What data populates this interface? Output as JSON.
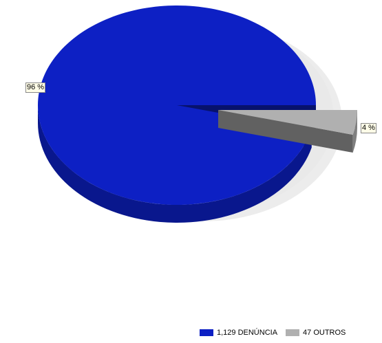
{
  "chart_data": {
    "type": "pie",
    "style": "3d-exploded",
    "slices": [
      {
        "label": "1,129 DENÚNCIA",
        "count": 1129,
        "percent_label": "96 %",
        "color": "#0d20c4"
      },
      {
        "label": "47 OUTROS",
        "count": 47,
        "percent_label": "4 %",
        "color": "#b0b0b0"
      }
    ],
    "legend_position": "bottom"
  }
}
